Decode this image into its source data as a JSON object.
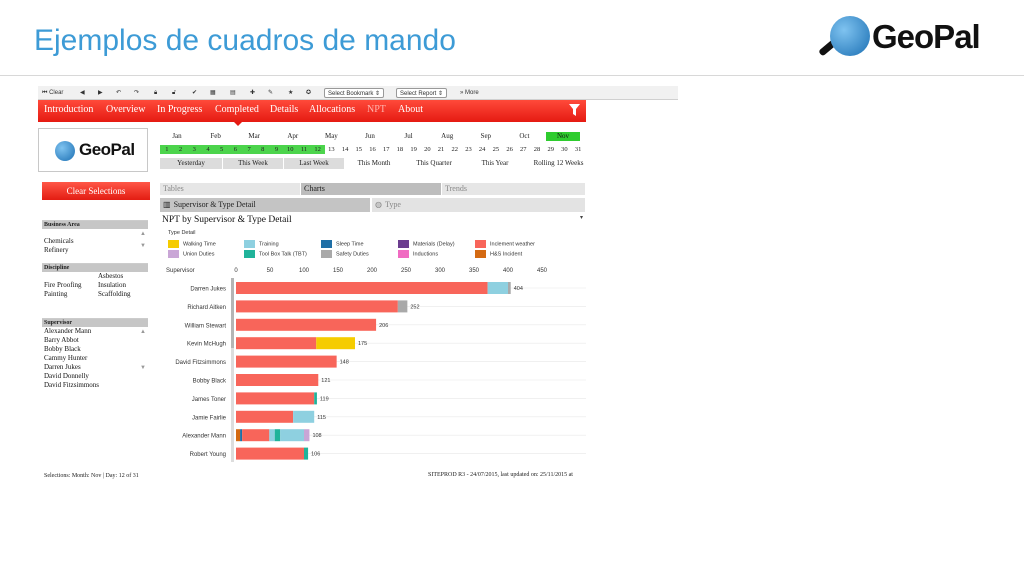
{
  "slide": {
    "title": "Ejemplos de cuadros de mando",
    "logo_text": "GeoPal"
  },
  "toolbar": {
    "clear_label": "Clear",
    "bookmark_select": "Select Bookmark",
    "report_select": "Select Report",
    "more_label": "More",
    "icons": [
      "first-icon",
      "back-icon",
      "forward-icon",
      "undo-icon",
      "redo-icon",
      "lock-icon",
      "unlock-icon",
      "check-icon",
      "grid-icon",
      "chart-icon",
      "plus-icon",
      "pen-icon",
      "star-icon",
      "star-filled-icon"
    ]
  },
  "tabs": [
    {
      "label": "Introduction"
    },
    {
      "label": "Overview"
    },
    {
      "label": "In Progress"
    },
    {
      "label": "Completed"
    },
    {
      "label": "Details"
    },
    {
      "label": "Allocations"
    },
    {
      "label": "NPT"
    },
    {
      "label": "About"
    }
  ],
  "app_logo": "GeoPal",
  "months": [
    "Jan",
    "Feb",
    "Mar",
    "Apr",
    "May",
    "Jun",
    "Jul",
    "Aug",
    "Sep",
    "Oct",
    "Nov"
  ],
  "selected_month": "Nov",
  "days": [
    "1",
    "2",
    "3",
    "4",
    "5",
    "6",
    "7",
    "8",
    "9",
    "10",
    "11",
    "12",
    "13",
    "14",
    "15",
    "16",
    "17",
    "18",
    "19",
    "20",
    "21",
    "22",
    "23",
    "24",
    "25",
    "26",
    "27",
    "28",
    "29",
    "30",
    "31"
  ],
  "selected_days_through": 12,
  "ranges": [
    "Yesterday",
    "This Week",
    "Last Week",
    "This Month",
    "This Quarter",
    "This Year",
    "Rolling 12 Weeks"
  ],
  "clear_selections": "Clear Selections",
  "business_area": {
    "header": "Business Area",
    "items": [
      "Chemicals",
      "Refinery"
    ]
  },
  "discipline": {
    "header": "Discipline",
    "items": [
      "Asbestos",
      "Fire Proofing",
      "Insulation",
      "Painting",
      "Scaffolding"
    ]
  },
  "supervisor_list": {
    "header": "Supervisor",
    "items": [
      "Alexander Mann",
      "Barry Abbot",
      "Bobby Black",
      "Cammy Hunter",
      "Darren Jukes",
      "David Donnelly",
      "David Fitzsimmons"
    ]
  },
  "object_tabs": [
    "Tables",
    "Charts",
    "Trends"
  ],
  "sub_tabs": [
    "Supervisor & Type Detail",
    "Type"
  ],
  "chart_menu": "▾",
  "chart_data": {
    "type": "bar",
    "orientation": "horizontal",
    "stacked": true,
    "title": "NPT by Supervisor & Type Detail",
    "legend_title": "Type Detail",
    "ylabel": "Supervisor",
    "xlim": [
      0,
      450
    ],
    "ticks": [
      0,
      50,
      100,
      150,
      200,
      250,
      300,
      350,
      400,
      450
    ],
    "legend": [
      {
        "name": "Walking Time",
        "color": "#f5cc00"
      },
      {
        "name": "Training",
        "color": "#8ed0e0"
      },
      {
        "name": "Sleep Time",
        "color": "#1f6fa6"
      },
      {
        "name": "Materials (Delay)",
        "color": "#6b3d8f"
      },
      {
        "name": "Inclement weather",
        "color": "#f8655a"
      },
      {
        "name": "Union Duties",
        "color": "#c9a6d6"
      },
      {
        "name": "Tool Box Talk (TBT)",
        "color": "#20b39a"
      },
      {
        "name": "Safety Duties",
        "color": "#a9a9a9"
      },
      {
        "name": "Inductions",
        "color": "#f06bc2"
      },
      {
        "name": "H&S Incident",
        "color": "#d46a12"
      }
    ],
    "categories": [
      "Darren Jukes",
      "Richard Aitken",
      "William Stewart",
      "Kevin McHugh",
      "David Fitzsimmons",
      "Bobby Black",
      "James Toner",
      "Jamie Fairlie",
      "Alexander Mann",
      "Robert Young"
    ],
    "totals": [
      404,
      252,
      206,
      175,
      148,
      121,
      119,
      115,
      108,
      106
    ],
    "segments": [
      [
        {
          "s": "Inclement weather",
          "v": 370
        },
        {
          "s": "Training",
          "v": 30
        },
        {
          "s": "Safety Duties",
          "v": 4
        }
      ],
      [
        {
          "s": "Inclement weather",
          "v": 238
        },
        {
          "s": "Safety Duties",
          "v": 14
        }
      ],
      [
        {
          "s": "Inclement weather",
          "v": 206
        }
      ],
      [
        {
          "s": "Inclement weather",
          "v": 118
        },
        {
          "s": "Walking Time",
          "v": 57
        }
      ],
      [
        {
          "s": "Inclement weather",
          "v": 148
        }
      ],
      [
        {
          "s": "Inclement weather",
          "v": 121
        }
      ],
      [
        {
          "s": "Inclement weather",
          "v": 115
        },
        {
          "s": "Tool Box Talk (TBT)",
          "v": 4
        }
      ],
      [
        {
          "s": "Inclement weather",
          "v": 84
        },
        {
          "s": "Training",
          "v": 31
        }
      ],
      [
        {
          "s": "H&S Incident",
          "v": 6
        },
        {
          "s": "Sleep Time",
          "v": 3
        },
        {
          "s": "Inclement weather",
          "v": 40
        },
        {
          "s": "Training",
          "v": 8
        },
        {
          "s": "Tool Box Talk (TBT)",
          "v": 8
        },
        {
          "s": "Training",
          "v": 35
        },
        {
          "s": "Union Duties",
          "v": 8
        }
      ],
      [
        {
          "s": "Inclement weather",
          "v": 100
        },
        {
          "s": "Tool Box Talk (TBT)",
          "v": 6
        }
      ]
    ]
  },
  "footer_left": "Selections: Month: Nov | Day: 12 of 31",
  "footer_right": "SITEPROD R3 - 24/07/2015, last updated on: 25/11/2015 at"
}
